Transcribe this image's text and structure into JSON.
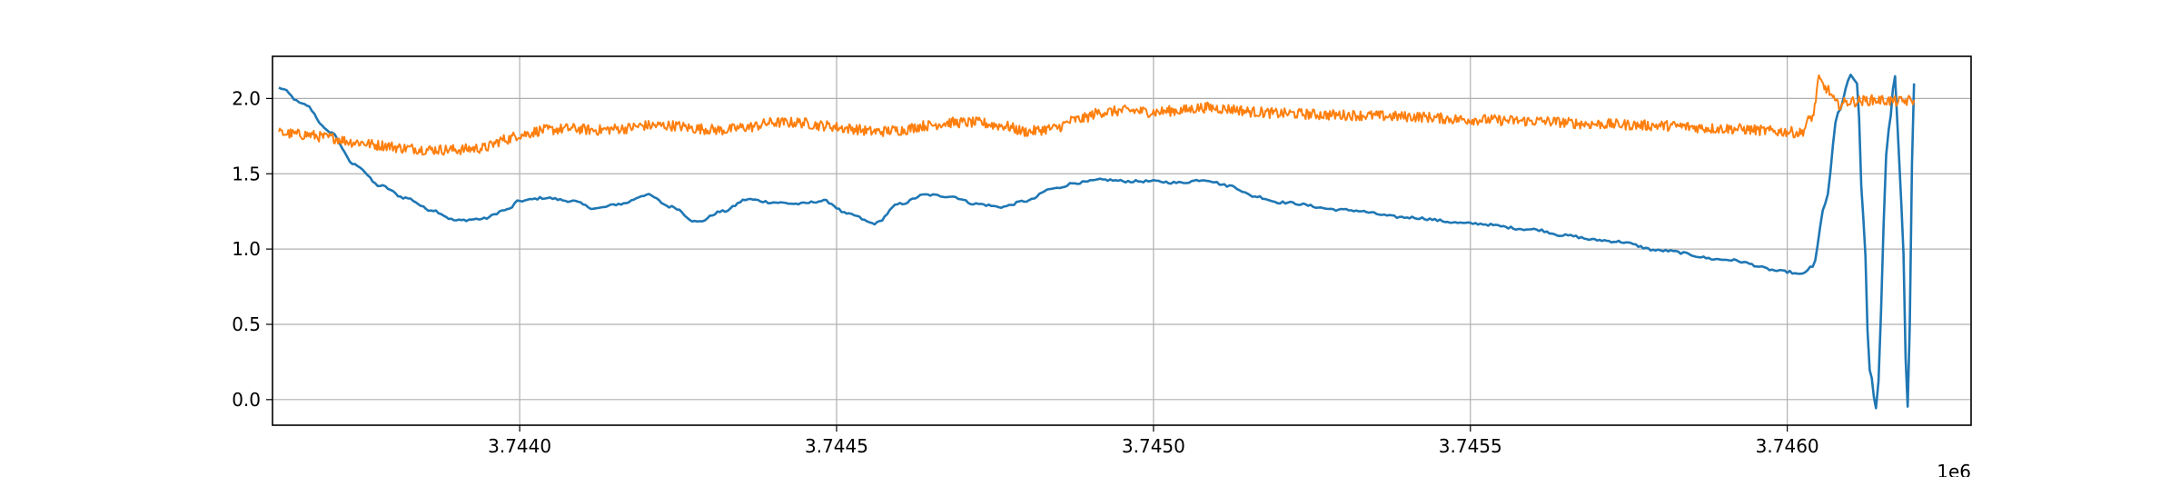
{
  "chart_data": {
    "type": "line",
    "title": "",
    "xlabel": "",
    "ylabel": "",
    "x_offset_label": "1e6",
    "xlim": [
      3.74361,
      3.74629
    ],
    "ylim": [
      -0.17,
      2.28
    ],
    "grid": true,
    "xticks": [
      3.744,
      3.7445,
      3.745,
      3.7455,
      3.746
    ],
    "xtick_labels": [
      "3.7440",
      "3.7445",
      "3.7450",
      "3.7455",
      "3.7460"
    ],
    "yticks": [
      0.0,
      0.5,
      1.0,
      1.5,
      2.0
    ],
    "ytick_labels": [
      "0.0",
      "0.5",
      "1.0",
      "1.5",
      "2.0"
    ],
    "colors": {
      "series1": "#1f77b4",
      "series2": "#ff7f0e",
      "grid": "#b0b0b0"
    },
    "series": [
      {
        "color": "#1f77b4",
        "x": [
          3.74362,
          3.74366,
          3.7437,
          3.74374,
          3.74378,
          3.74382,
          3.74386,
          3.7439,
          3.74394,
          3.74398,
          3.744,
          3.74404,
          3.74408,
          3.74412,
          3.74416,
          3.7442,
          3.74424,
          3.74428,
          3.74432,
          3.74436,
          3.7444,
          3.74444,
          3.74448,
          3.74452,
          3.74456,
          3.7446,
          3.74464,
          3.74468,
          3.74472,
          3.74476,
          3.7448,
          3.74484,
          3.74488,
          3.74492,
          3.74496,
          3.745,
          3.74504,
          3.74508,
          3.74512,
          3.74516,
          3.7452,
          3.7453,
          3.7454,
          3.7455,
          3.7456,
          3.74565,
          3.7457,
          3.74573,
          3.7458,
          3.7459,
          3.746,
          3.74602,
          3.74604,
          3.74606,
          3.74608,
          3.7461,
          3.74611,
          3.74612,
          3.74613,
          3.74614,
          3.74616,
          3.74617,
          3.74618,
          3.74619,
          3.7462
        ],
        "y": [
          2.07,
          1.96,
          1.78,
          1.56,
          1.42,
          1.34,
          1.26,
          1.19,
          1.2,
          1.26,
          1.32,
          1.34,
          1.32,
          1.27,
          1.3,
          1.36,
          1.28,
          1.18,
          1.25,
          1.33,
          1.31,
          1.3,
          1.32,
          1.23,
          1.17,
          1.3,
          1.36,
          1.35,
          1.3,
          1.28,
          1.32,
          1.4,
          1.44,
          1.46,
          1.45,
          1.45,
          1.44,
          1.46,
          1.42,
          1.35,
          1.31,
          1.26,
          1.21,
          1.17,
          1.13,
          1.09,
          1.06,
          1.05,
          0.99,
          0.93,
          0.85,
          0.83,
          0.88,
          1.3,
          1.9,
          2.15,
          2.1,
          1.2,
          0.2,
          -0.05,
          1.8,
          2.15,
          1.3,
          -0.05,
          2.1
        ]
      },
      {
        "color": "#ff7f0e",
        "x": [
          3.74362,
          3.74366,
          3.7437,
          3.74374,
          3.74378,
          3.74382,
          3.74386,
          3.7439,
          3.74394,
          3.74398,
          3.744,
          3.74404,
          3.74408,
          3.74412,
          3.74416,
          3.7442,
          3.74424,
          3.74428,
          3.74432,
          3.74436,
          3.7444,
          3.74444,
          3.74448,
          3.74452,
          3.74456,
          3.7446,
          3.74464,
          3.74468,
          3.74472,
          3.74476,
          3.7448,
          3.74484,
          3.74488,
          3.74492,
          3.74496,
          3.745,
          3.74504,
          3.74508,
          3.74512,
          3.74516,
          3.7452,
          3.7453,
          3.7454,
          3.7455,
          3.7456,
          3.7457,
          3.7458,
          3.7459,
          3.746,
          3.74602,
          3.74604,
          3.74605,
          3.74606,
          3.74608,
          3.7461,
          3.74614,
          3.74618,
          3.7462
        ],
        "y": [
          1.77,
          1.76,
          1.74,
          1.71,
          1.69,
          1.67,
          1.66,
          1.66,
          1.67,
          1.73,
          1.76,
          1.79,
          1.8,
          1.79,
          1.8,
          1.82,
          1.82,
          1.8,
          1.79,
          1.81,
          1.84,
          1.84,
          1.82,
          1.8,
          1.78,
          1.79,
          1.82,
          1.84,
          1.84,
          1.82,
          1.78,
          1.8,
          1.86,
          1.91,
          1.92,
          1.91,
          1.92,
          1.94,
          1.93,
          1.91,
          1.9,
          1.89,
          1.88,
          1.86,
          1.85,
          1.83,
          1.82,
          1.8,
          1.78,
          1.77,
          1.88,
          2.12,
          2.07,
          1.96,
          1.98,
          1.99,
          1.98,
          1.99
        ]
      }
    ]
  }
}
